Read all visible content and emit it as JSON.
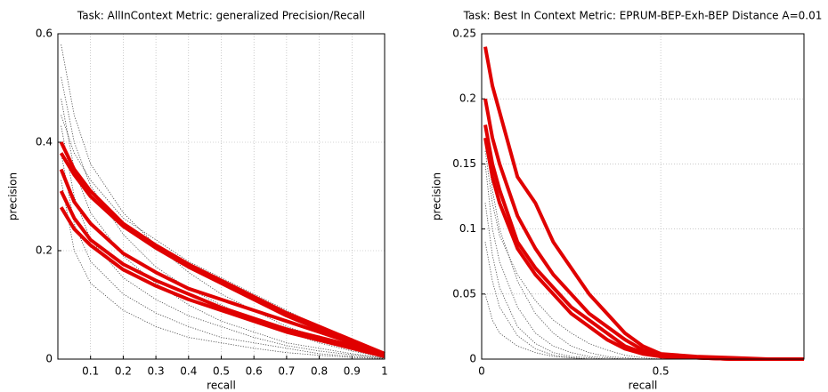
{
  "chart_data": [
    {
      "type": "line",
      "title": "Task: AllInContext Metric: generalized Precision/Recall",
      "x_label": "recall",
      "y_label": "precision",
      "x": [
        0.01,
        0.05,
        0.1,
        0.2,
        0.3,
        0.4,
        0.5,
        0.6,
        0.7,
        0.8,
        0.9,
        1.0
      ],
      "xlim": [
        0,
        1
      ],
      "xticks": [
        0.1,
        0.2,
        0.3,
        0.4,
        0.5,
        0.6,
        0.7,
        0.8,
        0.9,
        1
      ],
      "ylim": [
        0,
        0.6
      ],
      "yticks": [
        0,
        0.2,
        0.4,
        0.6
      ],
      "grid": true,
      "series": [
        {
          "color": "#444444",
          "dotted": true,
          "values": [
            0.58,
            0.45,
            0.36,
            0.27,
            0.21,
            0.16,
            0.12,
            0.09,
            0.06,
            0.04,
            0.02,
            0.005
          ]
        },
        {
          "color": "#444444",
          "dotted": true,
          "values": [
            0.52,
            0.4,
            0.32,
            0.23,
            0.17,
            0.13,
            0.1,
            0.07,
            0.05,
            0.03,
            0.015,
            0.003
          ]
        },
        {
          "color": "#444444",
          "dotted": true,
          "values": [
            0.48,
            0.35,
            0.27,
            0.19,
            0.14,
            0.1,
            0.07,
            0.05,
            0.03,
            0.02,
            0.01,
            0.002
          ]
        },
        {
          "color": "#444444",
          "dotted": true,
          "values": [
            0.43,
            0.3,
            0.22,
            0.15,
            0.11,
            0.08,
            0.06,
            0.04,
            0.025,
            0.015,
            0.008,
            0.002
          ]
        },
        {
          "color": "#444444",
          "dotted": true,
          "values": [
            0.38,
            0.25,
            0.18,
            0.12,
            0.085,
            0.06,
            0.04,
            0.03,
            0.02,
            0.01,
            0.005,
            0.001
          ]
        },
        {
          "color": "#444444",
          "dotted": true,
          "values": [
            0.33,
            0.2,
            0.14,
            0.09,
            0.06,
            0.04,
            0.03,
            0.02,
            0.012,
            0.007,
            0.003,
            0.001
          ]
        },
        {
          "color": "#444444",
          "dotted": true,
          "values": [
            0.45,
            0.38,
            0.33,
            0.26,
            0.22,
            0.18,
            0.15,
            0.12,
            0.09,
            0.06,
            0.035,
            0.01
          ]
        },
        {
          "color": "#e00000",
          "values": [
            0.4,
            0.35,
            0.31,
            0.25,
            0.21,
            0.175,
            0.145,
            0.115,
            0.085,
            0.06,
            0.035,
            0.01
          ]
        },
        {
          "color": "#e00000",
          "values": [
            0.38,
            0.34,
            0.3,
            0.245,
            0.205,
            0.17,
            0.14,
            0.11,
            0.08,
            0.055,
            0.03,
            0.01
          ]
        },
        {
          "color": "#e00000",
          "values": [
            0.35,
            0.29,
            0.25,
            0.195,
            0.16,
            0.13,
            0.11,
            0.09,
            0.07,
            0.05,
            0.03,
            0.01
          ]
        },
        {
          "color": "#e00000",
          "values": [
            0.31,
            0.26,
            0.22,
            0.175,
            0.145,
            0.12,
            0.095,
            0.075,
            0.055,
            0.04,
            0.025,
            0.01
          ]
        },
        {
          "color": "#e00000",
          "values": [
            0.28,
            0.24,
            0.21,
            0.165,
            0.135,
            0.11,
            0.09,
            0.07,
            0.05,
            0.035,
            0.02,
            0.005
          ]
        }
      ]
    },
    {
      "type": "line",
      "title": "Task: Best In Context Metric: EPRUM-BEP-Exh-BEP Distance A=0.01",
      "x_label": "recall",
      "y_label": "precision",
      "x": [
        0.01,
        0.03,
        0.05,
        0.1,
        0.15,
        0.2,
        0.25,
        0.3,
        0.35,
        0.4,
        0.45,
        0.5,
        0.6,
        0.7,
        0.8,
        0.9
      ],
      "xlim": [
        0,
        0.9
      ],
      "xticks": [
        0,
        0.5
      ],
      "ylim": [
        0,
        0.25
      ],
      "yticks": [
        0,
        0.05,
        0.1,
        0.15,
        0.2,
        0.25
      ],
      "grid": true,
      "series": [
        {
          "color": "#444444",
          "dotted": true,
          "values": [
            0.18,
            0.13,
            0.1,
            0.06,
            0.035,
            0.02,
            0.01,
            0.005,
            0.002,
            0.001,
            0,
            0,
            0,
            0,
            0,
            0
          ]
        },
        {
          "color": "#444444",
          "dotted": true,
          "values": [
            0.15,
            0.1,
            0.075,
            0.04,
            0.02,
            0.01,
            0.005,
            0.002,
            0.001,
            0,
            0,
            0,
            0,
            0,
            0,
            0
          ]
        },
        {
          "color": "#444444",
          "dotted": true,
          "values": [
            0.12,
            0.08,
            0.055,
            0.025,
            0.012,
            0.005,
            0.002,
            0.001,
            0,
            0,
            0,
            0,
            0,
            0,
            0,
            0
          ]
        },
        {
          "color": "#444444",
          "dotted": true,
          "values": [
            0.09,
            0.06,
            0.04,
            0.018,
            0.008,
            0.003,
            0.001,
            0,
            0,
            0,
            0,
            0,
            0,
            0,
            0,
            0
          ]
        },
        {
          "color": "#444444",
          "dotted": true,
          "values": [
            0.16,
            0.12,
            0.095,
            0.065,
            0.045,
            0.03,
            0.02,
            0.012,
            0.007,
            0.003,
            0.001,
            0,
            0,
            0,
            0,
            0
          ]
        },
        {
          "color": "#444444",
          "dotted": true,
          "values": [
            0.05,
            0.03,
            0.02,
            0.01,
            0.005,
            0.002,
            0.001,
            0,
            0,
            0,
            0,
            0,
            0,
            0,
            0,
            0
          ]
        },
        {
          "color": "#e00000",
          "values": [
            0.24,
            0.21,
            0.19,
            0.14,
            0.12,
            0.09,
            0.07,
            0.05,
            0.035,
            0.02,
            0.01,
            0.004,
            0.002,
            0.001,
            0,
            0
          ]
        },
        {
          "color": "#e00000",
          "values": [
            0.2,
            0.17,
            0.15,
            0.11,
            0.085,
            0.065,
            0.05,
            0.035,
            0.025,
            0.015,
            0.007,
            0.003,
            0.001,
            0,
            0,
            0
          ]
        },
        {
          "color": "#e00000",
          "values": [
            0.18,
            0.15,
            0.13,
            0.09,
            0.07,
            0.055,
            0.04,
            0.03,
            0.02,
            0.01,
            0.005,
            0.002,
            0.001,
            0,
            0,
            0
          ]
        },
        {
          "color": "#e00000",
          "values": [
            0.17,
            0.14,
            0.12,
            0.085,
            0.065,
            0.05,
            0.035,
            0.025,
            0.015,
            0.008,
            0.004,
            0.002,
            0.001,
            0,
            0,
            0
          ]
        }
      ]
    }
  ]
}
